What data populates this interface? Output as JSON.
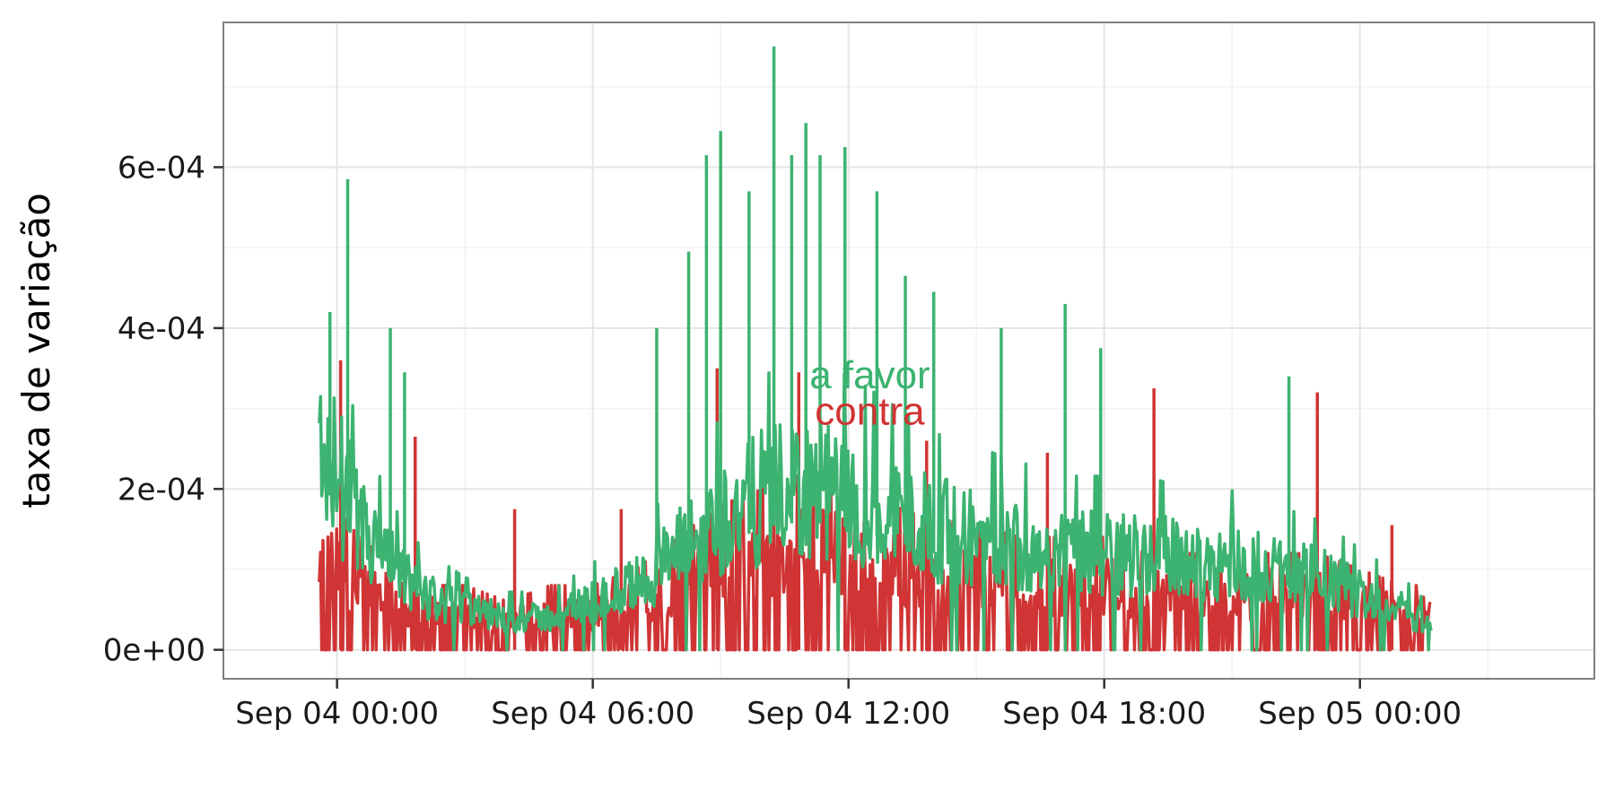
{
  "chart_data": {
    "type": "line",
    "title": "",
    "xlabel": "",
    "ylabel": "taxa de variação",
    "x_range": [
      "2016-09-03 21:20",
      "2016-09-05 05:30"
    ],
    "xlim": [
      "2016-09-03 21:20",
      "2016-09-05 05:30"
    ],
    "ylim": [
      -3.6e-05,
      0.00078
    ],
    "grid": true,
    "legend": "none",
    "x_ticks": [
      {
        "value": "2016-09-04 00:00",
        "label": "Sep 04 00:00"
      },
      {
        "value": "2016-09-04 06:00",
        "label": "Sep 04 06:00"
      },
      {
        "value": "2016-09-04 12:00",
        "label": "Sep 04 12:00"
      },
      {
        "value": "2016-09-04 18:00",
        "label": "Sep 04 18:00"
      },
      {
        "value": "2016-09-05 00:00",
        "label": "Sep 05 00:00"
      }
    ],
    "y_ticks": [
      {
        "value": 0,
        "label": "0e+00"
      },
      {
        "value": 0.0002,
        "label": "2e-04"
      },
      {
        "value": 0.0004,
        "label": "4e-04"
      },
      {
        "value": 0.0006,
        "label": "6e-04"
      }
    ],
    "series": [
      {
        "name": "contra",
        "color": "#d03434",
        "x": [
          "2016-09-03 23:35",
          "2016-09-04 00:00",
          "2016-09-04 00:30",
          "2016-09-04 01:00",
          "2016-09-04 01:30",
          "2016-09-04 02:00",
          "2016-09-04 03:00",
          "2016-09-04 04:00",
          "2016-09-04 05:00",
          "2016-09-04 06:00",
          "2016-09-04 07:00",
          "2016-09-04 08:00",
          "2016-09-04 09:00",
          "2016-09-04 10:00",
          "2016-09-04 11:00",
          "2016-09-04 12:00",
          "2016-09-04 13:00",
          "2016-09-04 14:00",
          "2016-09-04 15:00",
          "2016-09-04 16:00",
          "2016-09-04 17:00",
          "2016-09-04 18:00",
          "2016-09-04 19:00",
          "2016-09-04 20:00",
          "2016-09-04 21:00",
          "2016-09-04 22:00",
          "2016-09-04 23:00",
          "2016-09-05 00:00",
          "2016-09-05 01:00",
          "2016-09-05 01:40"
        ],
        "y": [
          9e-05,
          9e-05,
          7e-05,
          6e-05,
          5e-05,
          4e-05,
          4e-05,
          3e-05,
          4e-05,
          4e-05,
          5e-05,
          7e-05,
          9e-05,
          0.0001,
          0.00011,
          0.0001,
          9e-05,
          8e-05,
          8e-05,
          7e-05,
          7e-05,
          7e-05,
          6e-05,
          6e-05,
          6e-05,
          6e-05,
          6e-05,
          5e-05,
          4e-05,
          4e-05
        ],
        "spikes": [
          {
            "x": "2016-09-04 00:05",
            "y": 0.00036
          },
          {
            "x": "2016-09-04 01:50",
            "y": 0.000265
          },
          {
            "x": "2016-09-04 04:10",
            "y": 0.000175
          },
          {
            "x": "2016-09-04 06:40",
            "y": 0.000175
          },
          {
            "x": "2016-09-04 08:55",
            "y": 0.00035
          },
          {
            "x": "2016-09-04 10:50",
            "y": 0.000345
          },
          {
            "x": "2016-09-04 11:55",
            "y": 0.00034
          },
          {
            "x": "2016-09-04 13:50",
            "y": 0.00026
          },
          {
            "x": "2016-09-04 16:40",
            "y": 0.000245
          },
          {
            "x": "2016-09-04 19:10",
            "y": 0.000325
          },
          {
            "x": "2016-09-04 23:00",
            "y": 0.00032
          },
          {
            "x": "2016-09-05 00:45",
            "y": 0.000155
          }
        ]
      },
      {
        "name": "a favor",
        "color": "#3cb371",
        "x": [
          "2016-09-03 23:35",
          "2016-09-04 00:00",
          "2016-09-04 00:30",
          "2016-09-04 01:00",
          "2016-09-04 01:30",
          "2016-09-04 02:00",
          "2016-09-04 03:00",
          "2016-09-04 04:00",
          "2016-09-04 05:00",
          "2016-09-04 06:00",
          "2016-09-04 07:00",
          "2016-09-04 08:00",
          "2016-09-04 09:00",
          "2016-09-04 10:00",
          "2016-09-04 11:00",
          "2016-09-04 12:00",
          "2016-09-04 13:00",
          "2016-09-04 14:00",
          "2016-09-04 15:00",
          "2016-09-04 16:00",
          "2016-09-04 17:00",
          "2016-09-04 18:00",
          "2016-09-04 19:00",
          "2016-09-04 20:00",
          "2016-09-04 21:00",
          "2016-09-04 22:00",
          "2016-09-04 23:00",
          "2016-09-05 00:00",
          "2016-09-05 01:00",
          "2016-09-05 01:40"
        ],
        "y": [
          0.00027,
          0.00022,
          0.00015,
          0.00012,
          9e-05,
          7e-05,
          5e-05,
          4e-05,
          4e-05,
          6e-05,
          8e-05,
          0.00012,
          0.00016,
          0.00019,
          0.0002,
          0.00019,
          0.00017,
          0.00015,
          0.00014,
          0.00013,
          0.00012,
          0.00012,
          0.00012,
          0.00011,
          0.00011,
          0.0001,
          9e-05,
          7e-05,
          5e-05,
          3e-05
        ],
        "spikes": [
          {
            "x": "2016-09-04 00:15",
            "y": 0.000585
          },
          {
            "x": "2016-09-03 23:50",
            "y": 0.00042
          },
          {
            "x": "2016-09-04 01:15",
            "y": 0.0004
          },
          {
            "x": "2016-09-04 01:35",
            "y": 0.000345
          },
          {
            "x": "2016-09-04 07:30",
            "y": 0.0004
          },
          {
            "x": "2016-09-04 08:15",
            "y": 0.000495
          },
          {
            "x": "2016-09-04 08:40",
            "y": 0.000615
          },
          {
            "x": "2016-09-04 09:00",
            "y": 0.000645
          },
          {
            "x": "2016-09-04 09:40",
            "y": 0.00057
          },
          {
            "x": "2016-09-04 10:15",
            "y": 0.00075
          },
          {
            "x": "2016-09-04 10:40",
            "y": 0.000615
          },
          {
            "x": "2016-09-04 11:00",
            "y": 0.000655
          },
          {
            "x": "2016-09-04 11:20",
            "y": 0.000615
          },
          {
            "x": "2016-09-04 11:55",
            "y": 0.000625
          },
          {
            "x": "2016-09-04 12:40",
            "y": 0.00057
          },
          {
            "x": "2016-09-04 13:20",
            "y": 0.000465
          },
          {
            "x": "2016-09-04 14:00",
            "y": 0.000445
          },
          {
            "x": "2016-09-04 15:35",
            "y": 0.0004
          },
          {
            "x": "2016-09-04 17:05",
            "y": 0.00043
          },
          {
            "x": "2016-09-04 17:55",
            "y": 0.000375
          },
          {
            "x": "2016-09-04 22:20",
            "y": 0.00034
          }
        ]
      }
    ],
    "annotations": [
      {
        "text": "a favor",
        "x": "2016-09-04 12:30",
        "y": 0.000325,
        "color": "#3cb371"
      },
      {
        "text": "contra",
        "x": "2016-09-04 12:30",
        "y": 0.00028,
        "color": "#d03434"
      }
    ]
  }
}
